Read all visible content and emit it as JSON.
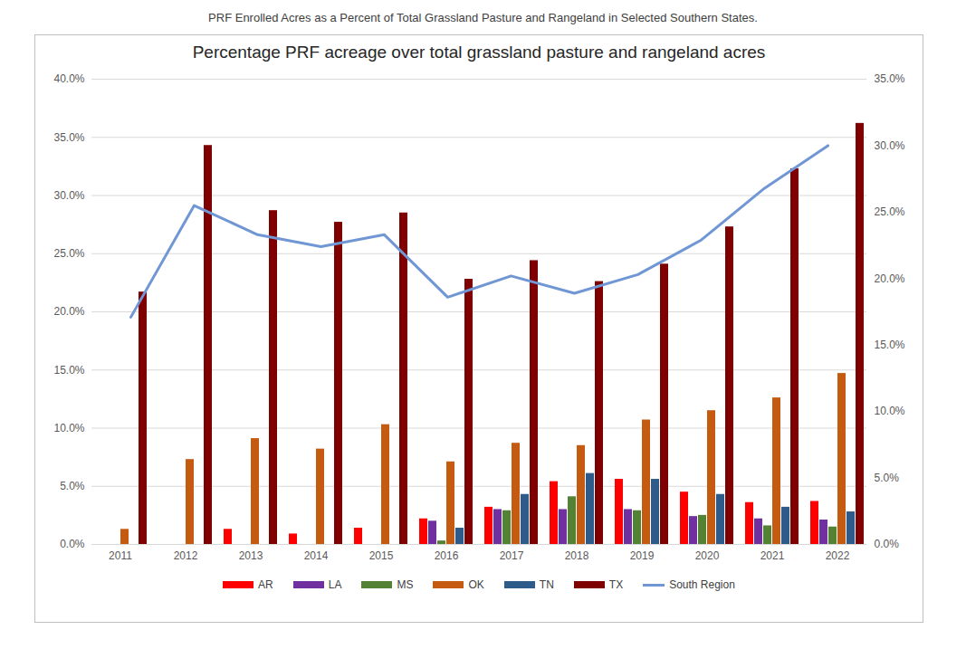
{
  "chart_data": {
    "type": "bar",
    "title": "Percentage PRF acreage over total grassland pasture and rangeland acres",
    "subtitle": "PRF Enrolled Acres as a Percent of Total Grassland Pasture and Rangeland in Selected Southern States.",
    "categories": [
      "2011",
      "2012",
      "2013",
      "2014",
      "2015",
      "2016",
      "2017",
      "2018",
      "2019",
      "2020",
      "2021",
      "2022"
    ],
    "series": [
      {
        "name": "AR",
        "color": "#ff0000",
        "values": [
          null,
          null,
          1.3,
          0.9,
          1.4,
          2.2,
          3.2,
          5.4,
          5.6,
          4.5,
          3.6,
          3.7
        ]
      },
      {
        "name": "LA",
        "color": "#7030a0",
        "values": [
          null,
          null,
          null,
          null,
          null,
          2.0,
          3.0,
          3.0,
          3.0,
          2.4,
          2.2,
          2.1
        ]
      },
      {
        "name": "MS",
        "color": "#548235",
        "values": [
          null,
          null,
          null,
          null,
          null,
          0.3,
          2.9,
          4.1,
          2.9,
          2.5,
          1.6,
          1.5
        ]
      },
      {
        "name": "OK",
        "color": "#c55a11",
        "values": [
          1.3,
          7.3,
          9.1,
          8.2,
          10.3,
          7.1,
          8.7,
          8.5,
          10.7,
          11.5,
          12.6,
          14.7
        ]
      },
      {
        "name": "TN",
        "color": "#2e5c8a",
        "values": [
          null,
          null,
          null,
          null,
          null,
          1.4,
          4.3,
          6.1,
          5.6,
          4.3,
          3.2,
          2.8
        ]
      },
      {
        "name": "TX",
        "color": "#7f0000",
        "values": [
          21.7,
          34.3,
          28.7,
          27.7,
          28.5,
          22.8,
          24.4,
          22.6,
          24.1,
          27.3,
          32.3,
          36.2
        ]
      },
      {
        "name": "South Region",
        "type": "line",
        "axis": "y2",
        "color": "#7097d4",
        "values": [
          17.1,
          25.5,
          23.3,
          22.4,
          23.3,
          18.6,
          20.2,
          18.9,
          20.3,
          22.9,
          26.8,
          30.0
        ]
      }
    ],
    "ylim": [
      0,
      40
    ],
    "yticks": [
      {
        "value": 0,
        "label": "0.0%"
      },
      {
        "value": 5,
        "label": "5.0%"
      },
      {
        "value": 10,
        "label": "10.0%"
      },
      {
        "value": 15,
        "label": "15.0%"
      },
      {
        "value": 20,
        "label": "20.0%"
      },
      {
        "value": 25,
        "label": "25.0%"
      },
      {
        "value": 30,
        "label": "30.0%"
      },
      {
        "value": 35,
        "label": "35.0%"
      },
      {
        "value": 40,
        "label": "40.0%"
      }
    ],
    "y2lim": [
      0,
      35
    ],
    "y2ticks": [
      {
        "value": 0,
        "label": "0.0%"
      },
      {
        "value": 5,
        "label": "5.0%"
      },
      {
        "value": 10,
        "label": "10.0%"
      },
      {
        "value": 15,
        "label": "15.0%"
      },
      {
        "value": 20,
        "label": "20.0%"
      },
      {
        "value": 25,
        "label": "25.0%"
      },
      {
        "value": 30,
        "label": "30.0%"
      },
      {
        "value": 35,
        "label": "35.0%"
      }
    ],
    "grid": true,
    "legend": "bottom"
  }
}
